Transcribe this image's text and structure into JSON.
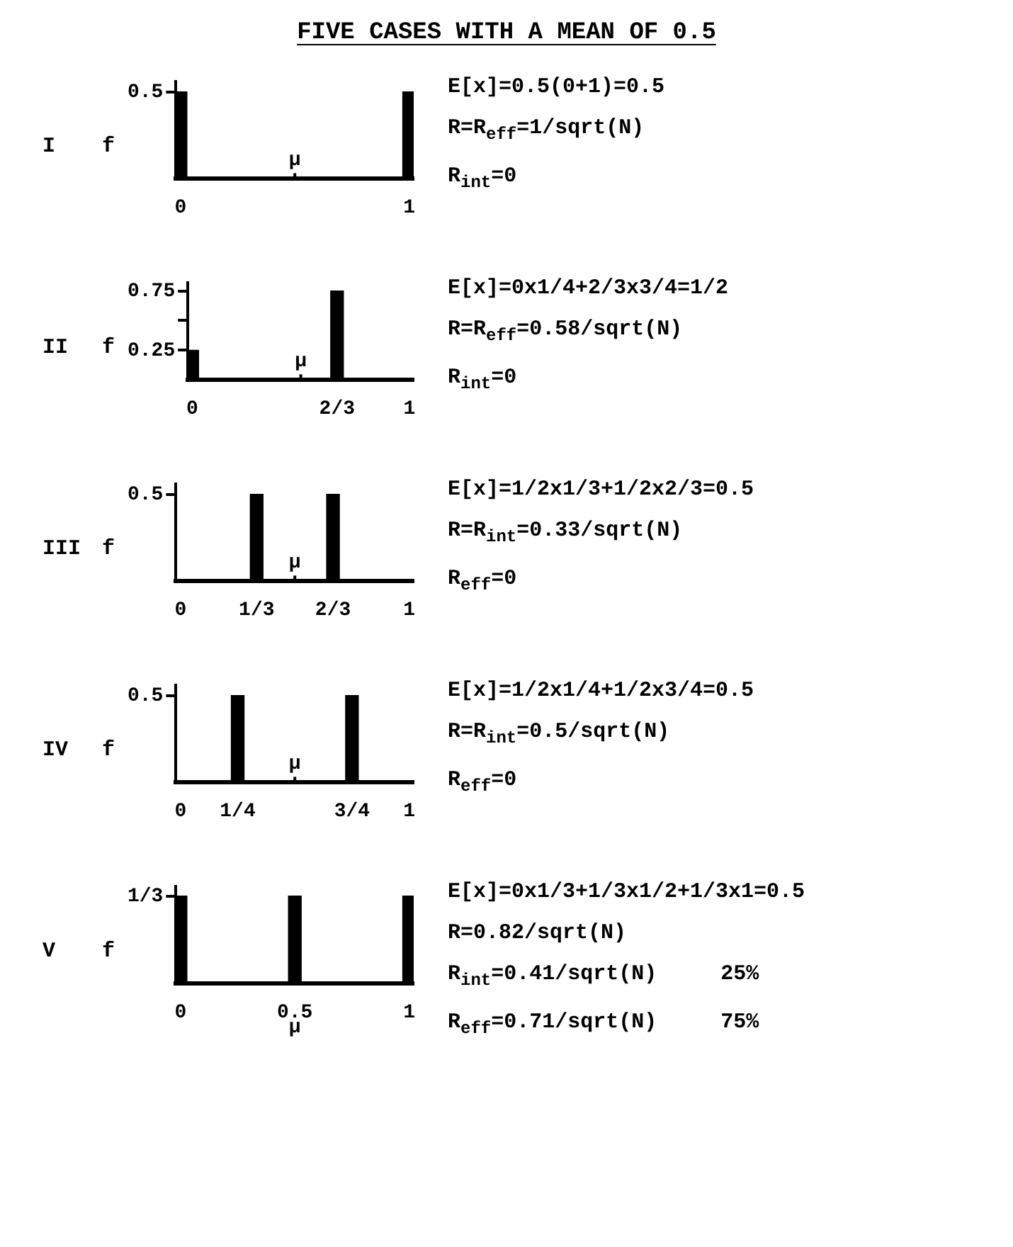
{
  "chart_data": [
    {
      "type": "bar",
      "title": "FIVE CASES WITH A MEAN OF 0.5",
      "subtitle": "I",
      "ylabel": "f",
      "x": [
        0,
        1
      ],
      "values": [
        0.5,
        0.5
      ],
      "color": "#000000",
      "xlim": [
        -0.02,
        1.02
      ],
      "ylim": [
        0,
        0.56
      ],
      "xticks": [
        0,
        1
      ],
      "yticks": [
        0.5
      ],
      "annotations": [
        "μ",
        "E[x]=0.5(0+1)=0.5",
        "R=R$_{eff}$=1/sqrt(N)",
        "R$_{int}$=0"
      ]
    },
    {
      "type": "bar",
      "subtitle": "II",
      "ylabel": "f",
      "x": [
        0,
        0.667
      ],
      "values": [
        0.25,
        0.75
      ],
      "color": "#000000",
      "xlim": [
        -0.02,
        1.02
      ],
      "ylim": [
        0,
        0.82
      ],
      "xticks": [
        0,
        {
          "value": 0.667,
          "label": "2/3"
        },
        1
      ],
      "yticks": [
        0.25,
        {
          "value": 0.5,
          "label": null
        },
        0.75
      ],
      "annotations": [
        "μ",
        "E[x]=0x1/4+2/3x3/4=1/2",
        "R=R$_{eff}$=0.58/sqrt(N)",
        "R$_{int}$=0"
      ]
    },
    {
      "type": "bar",
      "subtitle": "III",
      "ylabel": "f",
      "x": [
        0.333,
        0.667
      ],
      "values": [
        0.5,
        0.5
      ],
      "color": "#000000",
      "xlim": [
        -0.02,
        1.02
      ],
      "ylim": [
        0,
        0.56
      ],
      "xticks": [
        0,
        {
          "value": 0.333,
          "label": "1/3"
        },
        {
          "value": 0.667,
          "label": "2/3"
        },
        1
      ],
      "yticks": [
        0.5
      ],
      "annotations": [
        "μ",
        "E[x]=1/2x1/3+1/2x2/3=0.5",
        "R=R$_{int}$=0.33/sqrt(N)",
        "R$_{eff}$=0"
      ]
    },
    {
      "type": "bar",
      "subtitle": "IV",
      "ylabel": "f",
      "x": [
        0.25,
        0.75
      ],
      "values": [
        0.5,
        0.5
      ],
      "color": "#000000",
      "xlim": [
        -0.02,
        1.02
      ],
      "ylim": [
        0,
        0.56
      ],
      "xticks": [
        0,
        {
          "value": 0.25,
          "label": "1/4"
        },
        {
          "value": 0.75,
          "label": "3/4"
        },
        1
      ],
      "yticks": [
        0.5
      ],
      "annotations": [
        "μ",
        "E[x]=1/2x1/4+1/2x3/4=0.5",
        "R=R$_{int}$=0.5/sqrt(N)",
        "R$_{eff}$=0"
      ]
    },
    {
      "type": "bar",
      "subtitle": "V",
      "ylabel": "f",
      "x": [
        0,
        0.5,
        1
      ],
      "values": [
        0.333,
        0.333,
        0.333
      ],
      "color": "#000000",
      "xlim": [
        -0.02,
        1.02
      ],
      "ylim": [
        0,
        0.37
      ],
      "xticks": [
        0,
        0.5,
        1
      ],
      "yticks": [
        {
          "value": 0.333,
          "label": "1/3"
        }
      ],
      "annotations": [
        "μ",
        "E[x]=0x1/3+1/3x1/2+1/3x1=0.5",
        "R=0.82/sqrt(N)",
        "R$_{int}$=0.41/sqrt(N)     25%",
        "R$_{eff}$=0.71/sqrt(N)     75%"
      ]
    }
  ]
}
